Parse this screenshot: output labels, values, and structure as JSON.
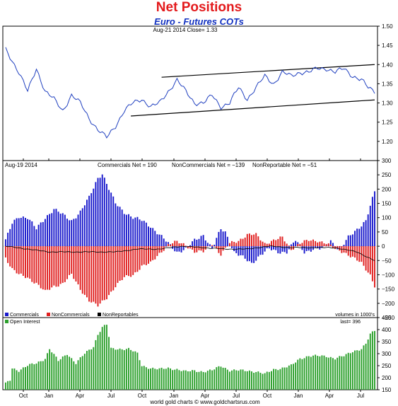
{
  "header": {
    "title": "Net Positions",
    "subtitle": "Euro - Futures COTs"
  },
  "footer": {
    "credit": "world gold charts © www.goldchartsrus.com"
  },
  "colors": {
    "title": "#e31a1c",
    "subtitle": "#1030c0",
    "price_line": "#1f3fbf",
    "commercials": "#1a1acc",
    "noncommercials": "#e02020",
    "nonreportables": "#000000",
    "open_interest": "#2ca02c"
  },
  "chart_data": [
    {
      "type": "line",
      "panel": "price",
      "header_text": "Aug-21  2014  Close= 1.33",
      "ylim": [
        1.15,
        1.5
      ],
      "yticks": [
        "1.20",
        "1.25",
        "1.30",
        "1.35",
        "1.40",
        "1.45",
        "1.50"
      ],
      "x_months": [
        "Oct",
        "Jan",
        "Apr",
        "Jul",
        "Oct",
        "Jan",
        "Apr",
        "Jul",
        "Oct",
        "Jan",
        "Apr",
        "Jul"
      ],
      "anchors": [
        [
          0,
          1.44
        ],
        [
          6,
          1.38
        ],
        [
          10,
          1.33
        ],
        [
          14,
          1.39
        ],
        [
          18,
          1.33
        ],
        [
          22,
          1.31
        ],
        [
          26,
          1.28
        ],
        [
          30,
          1.32
        ],
        [
          34,
          1.3
        ],
        [
          38,
          1.26
        ],
        [
          42,
          1.23
        ],
        [
          46,
          1.21
        ],
        [
          50,
          1.24
        ],
        [
          54,
          1.28
        ],
        [
          58,
          1.3
        ],
        [
          62,
          1.31
        ],
        [
          66,
          1.29
        ],
        [
          70,
          1.3
        ],
        [
          74,
          1.33
        ],
        [
          78,
          1.36
        ],
        [
          82,
          1.33
        ],
        [
          86,
          1.3
        ],
        [
          90,
          1.3
        ],
        [
          94,
          1.32
        ],
        [
          98,
          1.29
        ],
        [
          102,
          1.3
        ],
        [
          106,
          1.34
        ],
        [
          110,
          1.31
        ],
        [
          114,
          1.34
        ],
        [
          118,
          1.37
        ],
        [
          122,
          1.35
        ],
        [
          126,
          1.38
        ],
        [
          130,
          1.37
        ],
        [
          134,
          1.38
        ],
        [
          138,
          1.38
        ],
        [
          142,
          1.39
        ],
        [
          146,
          1.39
        ],
        [
          150,
          1.38
        ],
        [
          154,
          1.39
        ],
        [
          158,
          1.37
        ],
        [
          162,
          1.36
        ],
        [
          165,
          1.34
        ],
        [
          168,
          1.33
        ]
      ],
      "trendlines": [
        {
          "points": [
            [
              71,
              1.367
            ],
            [
              168,
              1.4
            ]
          ]
        },
        {
          "points": [
            [
              57,
              1.266
            ],
            [
              168,
              1.308
            ]
          ]
        }
      ]
    },
    {
      "type": "bar",
      "panel": "net_positions",
      "header_left": "Aug-19  2014",
      "header_items": [
        "Commercials Net = 190",
        "NonCommercials Net = −139",
        "NonReportable Net = −51"
      ],
      "ylim": [
        -250,
        300
      ],
      "yticks": [
        "−250",
        "−200",
        "−150",
        "−100",
        "−50",
        "0",
        "50",
        "100",
        "150",
        "200",
        "250",
        "300"
      ],
      "x_months": [
        "Oct",
        "Jan",
        "Apr",
        "Jul",
        "Oct",
        "Jan",
        "Apr",
        "Jul",
        "Oct",
        "Jan",
        "Apr",
        "Jul"
      ],
      "commercials_anchors": [
        [
          0,
          20
        ],
        [
          3,
          80
        ],
        [
          6,
          105
        ],
        [
          10,
          100
        ],
        [
          14,
          60
        ],
        [
          18,
          100
        ],
        [
          22,
          130
        ],
        [
          26,
          110
        ],
        [
          30,
          90
        ],
        [
          34,
          120
        ],
        [
          38,
          170
        ],
        [
          42,
          240
        ],
        [
          44,
          255
        ],
        [
          47,
          200
        ],
        [
          50,
          150
        ],
        [
          54,
          120
        ],
        [
          58,
          100
        ],
        [
          62,
          90
        ],
        [
          66,
          70
        ],
        [
          70,
          40
        ],
        [
          74,
          10
        ],
        [
          78,
          -20
        ],
        [
          82,
          -10
        ],
        [
          86,
          20
        ],
        [
          90,
          40
        ],
        [
          94,
          -10
        ],
        [
          98,
          60
        ],
        [
          100,
          50
        ],
        [
          104,
          -20
        ],
        [
          108,
          -40
        ],
        [
          112,
          -60
        ],
        [
          116,
          -30
        ],
        [
          120,
          -10
        ],
        [
          124,
          -20
        ],
        [
          128,
          -20
        ],
        [
          132,
          20
        ],
        [
          136,
          -20
        ],
        [
          140,
          -10
        ],
        [
          144,
          -10
        ],
        [
          148,
          20
        ],
        [
          152,
          -15
        ],
        [
          156,
          30
        ],
        [
          160,
          60
        ],
        [
          164,
          90
        ],
        [
          168,
          190
        ]
      ],
      "noncommercials_anchors": [
        [
          0,
          -40
        ],
        [
          3,
          -80
        ],
        [
          6,
          -100
        ],
        [
          10,
          -110
        ],
        [
          14,
          -130
        ],
        [
          18,
          -160
        ],
        [
          22,
          -140
        ],
        [
          26,
          -130
        ],
        [
          30,
          -100
        ],
        [
          34,
          -150
        ],
        [
          38,
          -190
        ],
        [
          42,
          -210
        ],
        [
          46,
          -180
        ],
        [
          50,
          -140
        ],
        [
          54,
          -110
        ],
        [
          58,
          -100
        ],
        [
          62,
          -70
        ],
        [
          66,
          -60
        ],
        [
          70,
          -25
        ],
        [
          74,
          5
        ],
        [
          78,
          15
        ],
        [
          82,
          5
        ],
        [
          86,
          -20
        ],
        [
          90,
          -20
        ],
        [
          94,
          10
        ],
        [
          98,
          -30
        ],
        [
          102,
          10
        ],
        [
          106,
          20
        ],
        [
          110,
          40
        ],
        [
          114,
          40
        ],
        [
          118,
          10
        ],
        [
          122,
          20
        ],
        [
          126,
          30
        ],
        [
          130,
          -10
        ],
        [
          134,
          10
        ],
        [
          138,
          20
        ],
        [
          142,
          20
        ],
        [
          146,
          10
        ],
        [
          150,
          -10
        ],
        [
          154,
          -20
        ],
        [
          158,
          -40
        ],
        [
          162,
          -60
        ],
        [
          166,
          -100
        ],
        [
          168,
          -139
        ]
      ],
      "nonreportable_anchors": [
        [
          0,
          0
        ],
        [
          10,
          -10
        ],
        [
          20,
          -20
        ],
        [
          30,
          -20
        ],
        [
          40,
          -20
        ],
        [
          50,
          -20
        ],
        [
          60,
          -10
        ],
        [
          70,
          -10
        ],
        [
          80,
          0
        ],
        [
          90,
          -5
        ],
        [
          100,
          -10
        ],
        [
          110,
          -10
        ],
        [
          120,
          0
        ],
        [
          130,
          -5
        ],
        [
          140,
          -5
        ],
        [
          150,
          -5
        ],
        [
          160,
          -20
        ],
        [
          168,
          -51
        ]
      ],
      "legend": [
        "Commercials",
        "NonCommercials",
        "NonReportables"
      ],
      "units_note": "volumes in 1000's"
    },
    {
      "type": "bar",
      "panel": "open_interest",
      "legend": [
        "Open Interest"
      ],
      "last_label": "last= 396",
      "ylim": [
        150,
        450
      ],
      "yticks": [
        "150",
        "200",
        "250",
        "300",
        "350",
        "400",
        "450"
      ],
      "x_months": [
        "Oct",
        "Jan",
        "Apr",
        "Jul",
        "Oct",
        "Jan",
        "Apr",
        "Jul",
        "Oct",
        "Jan",
        "Apr",
        "Jul"
      ],
      "anchors": [
        [
          0,
          175
        ],
        [
          2,
          190
        ],
        [
          3,
          240
        ],
        [
          6,
          230
        ],
        [
          10,
          250
        ],
        [
          14,
          260
        ],
        [
          18,
          280
        ],
        [
          20,
          320
        ],
        [
          24,
          270
        ],
        [
          28,
          300
        ],
        [
          32,
          260
        ],
        [
          36,
          300
        ],
        [
          40,
          330
        ],
        [
          42,
          380
        ],
        [
          44,
          410
        ],
        [
          46,
          420
        ],
        [
          48,
          320
        ],
        [
          52,
          320
        ],
        [
          56,
          320
        ],
        [
          60,
          300
        ],
        [
          62,
          250
        ],
        [
          66,
          240
        ],
        [
          70,
          235
        ],
        [
          74,
          240
        ],
        [
          78,
          235
        ],
        [
          82,
          225
        ],
        [
          86,
          230
        ],
        [
          90,
          225
        ],
        [
          94,
          230
        ],
        [
          98,
          250
        ],
        [
          102,
          230
        ],
        [
          106,
          230
        ],
        [
          110,
          230
        ],
        [
          114,
          225
        ],
        [
          118,
          215
        ],
        [
          122,
          235
        ],
        [
          126,
          240
        ],
        [
          130,
          250
        ],
        [
          134,
          280
        ],
        [
          138,
          290
        ],
        [
          142,
          290
        ],
        [
          146,
          290
        ],
        [
          150,
          280
        ],
        [
          154,
          290
        ],
        [
          158,
          310
        ],
        [
          162,
          320
        ],
        [
          164,
          340
        ],
        [
          166,
          380
        ],
        [
          168,
          396
        ]
      ]
    }
  ]
}
